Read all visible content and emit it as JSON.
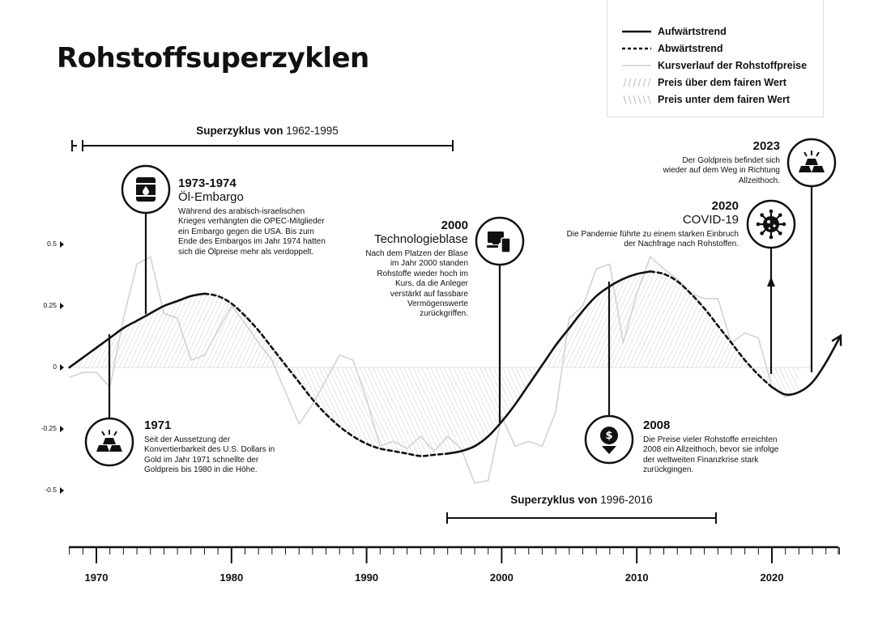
{
  "title": "Rohstoffsuperzyklen",
  "legend": {
    "items": [
      {
        "label": "Aufwärtstrend",
        "style": "solid"
      },
      {
        "label": "Abwärtstrend",
        "style": "dashed"
      },
      {
        "label": "Kursverlauf der Rohstoffpreise",
        "style": "gray"
      },
      {
        "label": "Preis über dem fairen Wert",
        "style": "hatch-forward"
      },
      {
        "label": "Preis unter dem fairen Wert",
        "style": "hatch-back"
      }
    ]
  },
  "supercycles": [
    {
      "prefix": "Superzyklus von",
      "years": "1962-1995",
      "start": 1968,
      "end": 1996
    },
    {
      "prefix": "Superzyklus von",
      "years": "1996-2016",
      "start": 1996,
      "end": 2016
    }
  ],
  "annotations": {
    "a1971": {
      "year": "1971",
      "body": "Seit der Aussetzung der Konvertierbarkeit des U.S. Dollars in Gold im Jahr 1971 schnellte der Goldpreis bis 1980 in die Höhe.",
      "icon": "gold-bars-icon"
    },
    "a1973": {
      "year": "1973-1974",
      "subtitle": "Öl-Embargo",
      "body": "Während des arabisch-israelischen Krieges verhängten die OPEC-Mitglieder ein Embargo gegen die USA. Bis zum Ende des Embargos im Jahr 1974 hatten sich die Ölpreise mehr als verdoppelt.",
      "icon": "oil-barrel-icon"
    },
    "a2000": {
      "year": "2000",
      "subtitle": "Technologieblase",
      "body": "Nach dem Platzen der Blase im Jahr 2000 standen Rohstoffe wieder hoch im Kurs, da die Anleger verstärkt auf fassbare Vermögenswerte zurückgriffen.",
      "icon": "devices-icon"
    },
    "a2008": {
      "year": "2008",
      "body": "Die Preise vieler Rohstoffe erreichten 2008 ein Allzeithoch, bevor sie infolge der weltweiten Finanzkrise stark zurückgingen.",
      "icon": "dollar-down-icon"
    },
    "a2020": {
      "year": "2020",
      "subtitle": "COVID-19",
      "body": "Die Pandemie führte zu einem starken Einbruch der Nachfrage nach Rohstoffen.",
      "icon": "virus-icon"
    },
    "a2023": {
      "year": "2023",
      "body": "Der Goldpreis befindet sich wieder auf dem Weg in Richtung Allzeithoch.",
      "icon": "gold-bars-icon"
    }
  },
  "chart_data": {
    "type": "line",
    "title": "Rohstoffsuperzyklen",
    "xlabel": "",
    "ylabel": "",
    "xlim": [
      1968,
      2025
    ],
    "ylim": [
      -0.5,
      0.5
    ],
    "x_ticks": [
      1970,
      1980,
      1990,
      2000,
      2010,
      2020
    ],
    "y_ticks": [
      0.5,
      0.25,
      0,
      -0.25,
      -0.5
    ],
    "y_tick_labels": [
      "0.5",
      "0.25",
      "0",
      "-0.25",
      "-0.5"
    ],
    "grid": false,
    "legend_position": "top-right",
    "series": [
      {
        "name": "Kursverlauf der Rohstoffpreise",
        "x": [
          1968,
          1969,
          1970,
          1971,
          1972,
          1973,
          1974,
          1975,
          1976,
          1977,
          1978,
          1979,
          1980,
          1981,
          1982,
          1983,
          1984,
          1985,
          1986,
          1987,
          1988,
          1989,
          1990,
          1991,
          1992,
          1993,
          1994,
          1995,
          1996,
          1997,
          1998,
          1999,
          2000,
          2001,
          2002,
          2003,
          2004,
          2005,
          2006,
          2007,
          2008,
          2009,
          2010,
          2011,
          2012,
          2013,
          2014,
          2015,
          2016,
          2017,
          2018,
          2019,
          2020,
          2021,
          2022
        ],
        "y": [
          -0.04,
          -0.02,
          -0.02,
          -0.08,
          0.2,
          0.42,
          0.45,
          0.22,
          0.2,
          0.03,
          0.05,
          0.15,
          0.25,
          0.18,
          0.1,
          0.03,
          -0.1,
          -0.23,
          -0.15,
          -0.05,
          0.05,
          0.03,
          -0.13,
          -0.32,
          -0.3,
          -0.33,
          -0.28,
          -0.34,
          -0.28,
          -0.33,
          -0.47,
          -0.46,
          -0.2,
          -0.32,
          -0.3,
          -0.32,
          -0.18,
          0.2,
          0.25,
          0.4,
          0.42,
          0.1,
          0.3,
          0.45,
          0.4,
          0.36,
          0.3,
          0.28,
          0.28,
          0.1,
          0.14,
          0.12,
          -0.08,
          -0.12,
          -0.1
        ]
      },
      {
        "name": "Aufwärtstrend / Abwärtstrend",
        "x": [
          1968,
          1969,
          1970,
          1971,
          1972,
          1973,
          1974,
          1975,
          1976,
          1977,
          1978,
          1979,
          1980,
          1981,
          1982,
          1983,
          1984,
          1985,
          1986,
          1987,
          1988,
          1989,
          1990,
          1991,
          1992,
          1993,
          1994,
          1995,
          1996,
          1997,
          1998,
          1999,
          2000,
          2001,
          2002,
          2003,
          2004,
          2005,
          2006,
          2007,
          2008,
          2009,
          2010,
          2011,
          2012,
          2013,
          2014,
          2015,
          2016,
          2017,
          2018,
          2019,
          2020,
          2021,
          2022,
          2023,
          2024,
          2025
        ],
        "y": [
          0.0,
          0.04,
          0.08,
          0.12,
          0.16,
          0.19,
          0.22,
          0.25,
          0.27,
          0.29,
          0.3,
          0.29,
          0.26,
          0.21,
          0.15,
          0.08,
          0.01,
          -0.06,
          -0.13,
          -0.19,
          -0.24,
          -0.28,
          -0.31,
          -0.33,
          -0.34,
          -0.35,
          -0.36,
          -0.355,
          -0.35,
          -0.34,
          -0.32,
          -0.28,
          -0.22,
          -0.15,
          -0.07,
          0.01,
          0.09,
          0.16,
          0.23,
          0.29,
          0.33,
          0.36,
          0.38,
          0.39,
          0.38,
          0.35,
          0.3,
          0.24,
          0.17,
          0.1,
          0.03,
          -0.03,
          -0.08,
          -0.11,
          -0.1,
          -0.06,
          0.02,
          0.12
        ],
        "segments": [
          {
            "trend": "Aufwärtstrend",
            "from": 1968,
            "to": 1978
          },
          {
            "trend": "Abwärtstrend",
            "from": 1978,
            "to": 1996
          },
          {
            "trend": "Aufwärtstrend",
            "from": 1996,
            "to": 2011
          },
          {
            "trend": "Abwärtstrend",
            "from": 2011,
            "to": 2020
          },
          {
            "trend": "Aufwärtstrend",
            "from": 2020,
            "to": 2025
          }
        ]
      }
    ]
  }
}
